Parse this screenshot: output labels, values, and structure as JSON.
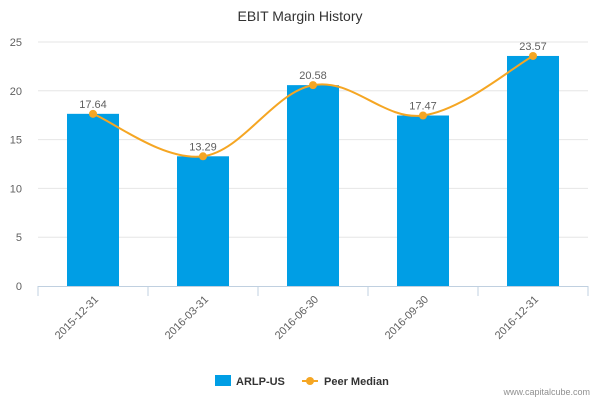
{
  "chart_data": {
    "type": "bar",
    "title": "EBIT Margin History",
    "categories": [
      "2015-12-31",
      "2016-03-31",
      "2016-06-30",
      "2016-09-30",
      "2016-12-31"
    ],
    "series": [
      {
        "name": "ARLP-US",
        "type": "bar",
        "values": [
          17.64,
          13.29,
          20.58,
          17.47,
          23.57
        ],
        "color": "#009ee5"
      },
      {
        "name": "Peer Median",
        "type": "line",
        "values": [
          17.64,
          13.29,
          20.58,
          17.47,
          23.57
        ],
        "color": "#f5a623"
      }
    ],
    "data_labels": [
      "17.64",
      "13.29",
      "20.58",
      "17.47",
      "23.57"
    ],
    "y_ticks": [
      "0",
      "5",
      "10",
      "15",
      "20",
      "25"
    ],
    "ylim": [
      0,
      25
    ],
    "xlabel": "",
    "ylabel": "",
    "legend_position": "bottom-center",
    "grid": true
  },
  "credit": "www.capitalcube.com"
}
